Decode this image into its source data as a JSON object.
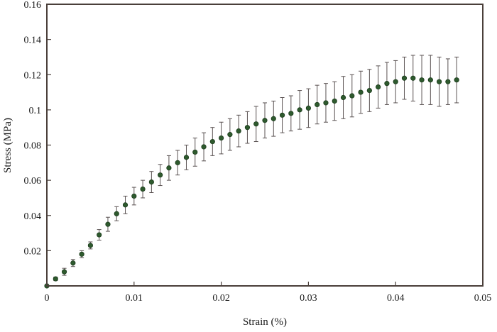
{
  "chart_data": {
    "type": "scatter",
    "title": "",
    "xlabel": "Strain (%)",
    "ylabel": "Stress (MPa)",
    "xlim": [
      0,
      0.05
    ],
    "ylim": [
      0,
      0.16
    ],
    "x_ticks": [
      0,
      0.01,
      0.02,
      0.03,
      0.04,
      0.05
    ],
    "x_tick_labels": [
      "0",
      "0.01",
      "0.02",
      "0.03",
      "0.04",
      "0.05"
    ],
    "y_ticks": [
      0.02,
      0.04,
      0.06,
      0.08,
      0.1,
      0.12,
      0.14,
      0.16
    ],
    "y_tick_labels": [
      "0.02",
      "0.04",
      "0.06",
      "0.08",
      "0.1",
      "0.12",
      "0.14",
      "0.16"
    ],
    "grid": false,
    "legend": "none",
    "colors": {
      "marker": "#2e5a2e",
      "marker_edge": "#1b3a1b",
      "error_bar": "#5a5252",
      "frame": "#4a3f3a"
    },
    "series": [
      {
        "x": [
          0.0,
          0.001,
          0.002,
          0.003,
          0.004,
          0.005,
          0.006,
          0.007,
          0.008,
          0.009,
          0.01,
          0.011,
          0.012,
          0.013,
          0.014,
          0.015,
          0.016,
          0.017,
          0.018,
          0.019,
          0.02,
          0.021,
          0.022,
          0.023,
          0.024,
          0.025,
          0.026,
          0.027,
          0.028,
          0.029,
          0.03,
          0.031,
          0.032,
          0.033,
          0.034,
          0.035,
          0.036,
          0.037,
          0.038,
          0.039,
          0.04,
          0.041,
          0.042,
          0.043,
          0.044,
          0.045,
          0.046,
          0.047
        ],
        "y": [
          0.0,
          0.004,
          0.008,
          0.013,
          0.018,
          0.023,
          0.029,
          0.035,
          0.041,
          0.046,
          0.051,
          0.055,
          0.059,
          0.063,
          0.067,
          0.07,
          0.073,
          0.076,
          0.079,
          0.082,
          0.084,
          0.086,
          0.088,
          0.09,
          0.092,
          0.094,
          0.095,
          0.097,
          0.098,
          0.1,
          0.101,
          0.103,
          0.104,
          0.105,
          0.107,
          0.108,
          0.11,
          0.111,
          0.113,
          0.115,
          0.116,
          0.118,
          0.118,
          0.117,
          0.117,
          0.116,
          0.116,
          0.117
        ],
        "error": [
          0.0,
          0.001,
          0.002,
          0.002,
          0.002,
          0.002,
          0.003,
          0.004,
          0.004,
          0.005,
          0.005,
          0.005,
          0.006,
          0.006,
          0.007,
          0.007,
          0.007,
          0.008,
          0.008,
          0.008,
          0.009,
          0.009,
          0.009,
          0.009,
          0.01,
          0.01,
          0.01,
          0.01,
          0.01,
          0.011,
          0.011,
          0.011,
          0.011,
          0.011,
          0.012,
          0.012,
          0.012,
          0.012,
          0.012,
          0.012,
          0.012,
          0.012,
          0.013,
          0.014,
          0.014,
          0.014,
          0.013,
          0.013
        ]
      }
    ]
  }
}
